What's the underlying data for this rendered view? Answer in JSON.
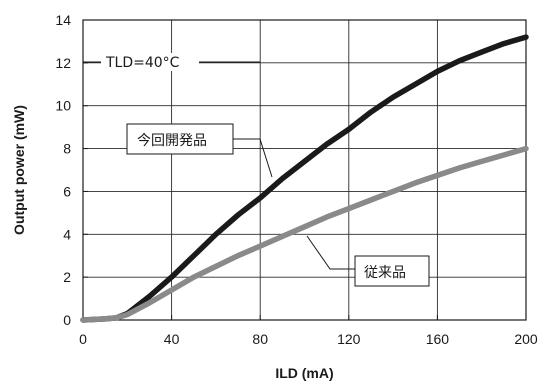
{
  "chart_data": {
    "type": "line",
    "xlabel": "ILD (mA)",
    "ylabel": "Output power (mW)",
    "xlim": [
      0,
      200
    ],
    "ylim": [
      0,
      14
    ],
    "xticks": [
      0,
      40,
      80,
      120,
      160,
      200
    ],
    "yticks": [
      0,
      2,
      4,
      6,
      8,
      10,
      12,
      14
    ],
    "grid": true,
    "annotations": {
      "condition": "TLD=40°C",
      "new_label": "今回開発品",
      "old_label": "従来品"
    },
    "series": [
      {
        "name": "今回開発品",
        "color": "#1a1a1a",
        "x": [
          0,
          10,
          15,
          20,
          30,
          40,
          50,
          60,
          70,
          80,
          90,
          100,
          110,
          120,
          130,
          140,
          150,
          160,
          170,
          180,
          190,
          200
        ],
        "y": [
          0,
          0.05,
          0.1,
          0.3,
          1.1,
          2.0,
          3.0,
          4.0,
          4.9,
          5.7,
          6.6,
          7.4,
          8.2,
          8.9,
          9.7,
          10.4,
          11.0,
          11.6,
          12.1,
          12.5,
          12.9,
          13.2
        ]
      },
      {
        "name": "従来品",
        "color": "#8a8a8a",
        "x": [
          0,
          10,
          15,
          20,
          30,
          40,
          50,
          60,
          70,
          80,
          90,
          100,
          110,
          120,
          130,
          140,
          150,
          160,
          170,
          180,
          190,
          200
        ],
        "y": [
          0,
          0.05,
          0.1,
          0.25,
          0.8,
          1.4,
          2.0,
          2.5,
          3.0,
          3.45,
          3.9,
          4.35,
          4.8,
          5.2,
          5.6,
          6.0,
          6.4,
          6.75,
          7.1,
          7.4,
          7.7,
          8.0
        ]
      }
    ]
  }
}
